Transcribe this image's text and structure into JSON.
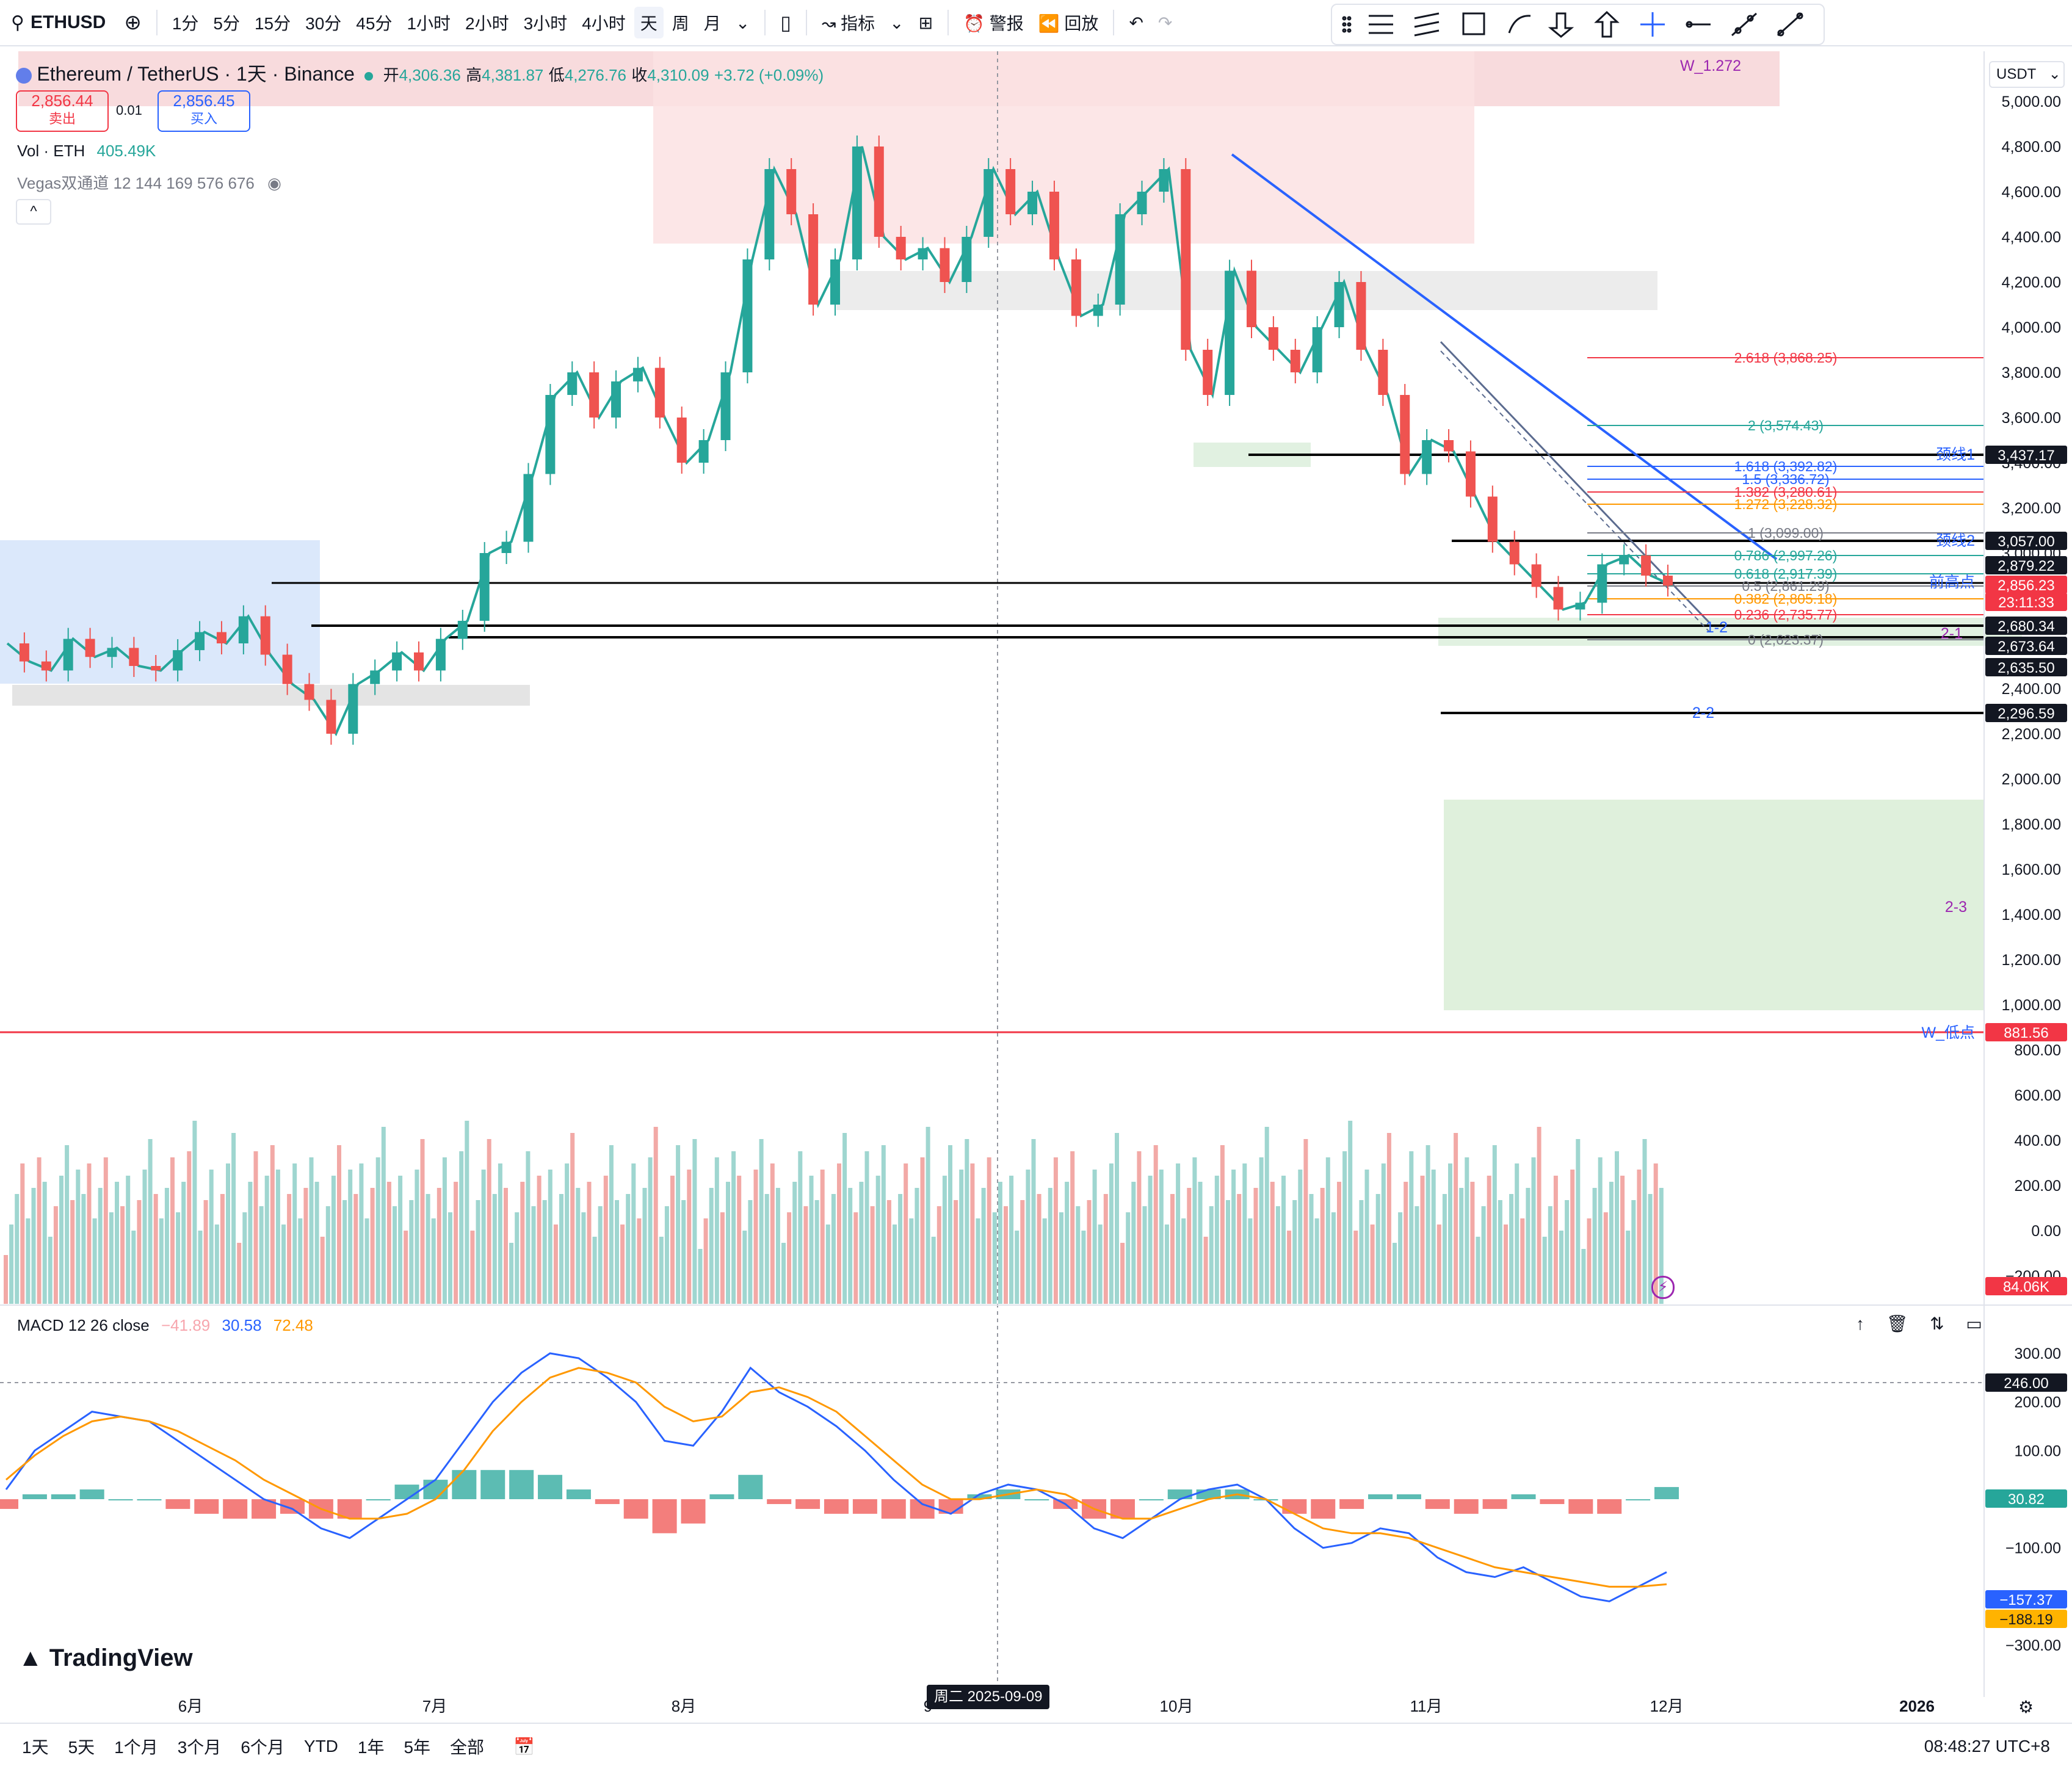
{
  "toolbar": {
    "symbol": "ETHUSD",
    "intervals": [
      "1分",
      "5分",
      "15分",
      "30分",
      "45分",
      "1小时",
      "2小时",
      "3小时",
      "4小时",
      "天",
      "周",
      "月"
    ],
    "active_interval": "天",
    "indicators_label": "指标",
    "alert_label": "警报",
    "replay_label": "回放"
  },
  "header": {
    "title": "Ethereum / TetherUS · 1天 · Binance",
    "open_label": "开",
    "open": "4,306.36",
    "high_label": "高",
    "high": "4,381.87",
    "low_label": "低",
    "low": "4,276.76",
    "close_label": "收",
    "close": "4,310.09",
    "change": "+3.72 (+0.09%)",
    "sell_price": "2,856.44",
    "sell_label": "卖出",
    "spread": "0.01",
    "buy_price": "2,856.45",
    "buy_label": "买入",
    "vol_label": "Vol · ETH",
    "vol_value": "405.49K",
    "vegas_label": "Vegas双通道 12 144 169 576 676",
    "currency": "USDT"
  },
  "macd_legend": {
    "label": "MACD 12 26 close",
    "hist": "−41.89",
    "macd": "30.58",
    "signal": "72.48"
  },
  "chart_data": {
    "type": "candlestick",
    "y_axis_ticks": [
      "5,000.00",
      "4,800.00",
      "4,600.00",
      "4,400.00",
      "4,200.00",
      "4,000.00",
      "3,800.00",
      "3,600.00",
      "3,400.00",
      "3,200.00",
      "3,000.00",
      "2,800.00",
      "2,600.00",
      "2,400.00",
      "2,200.00",
      "2,000.00",
      "1,800.00",
      "1,600.00",
      "1,400.00",
      "1,200.00",
      "1,000.00",
      "800.00",
      "600.00",
      "400.00",
      "200.00",
      "0.00",
      "−200.00"
    ],
    "y_axis_values": [
      5000,
      4800,
      4600,
      4400,
      4200,
      4000,
      3800,
      3600,
      3400,
      3200,
      3000,
      2800,
      2600,
      2400,
      2200,
      2000,
      1800,
      1600,
      1400,
      1200,
      1000,
      800,
      600,
      400,
      200,
      0,
      -200
    ],
    "x_axis_ticks": [
      "6月",
      "7月",
      "8月",
      "9",
      "10月",
      "11月",
      "12月",
      "2026"
    ],
    "crosshair_date": "周二 2025-09-09",
    "price_trend": [
      2600,
      2520,
      2480,
      2620,
      2540,
      2580,
      2500,
      2480,
      2570,
      2650,
      2600,
      2720,
      2550,
      2420,
      2350,
      2200,
      2420,
      2480,
      2560,
      2480,
      2620,
      2700,
      3000,
      3050,
      3350,
      3700,
      3800,
      3600,
      3760,
      3820,
      3600,
      3400,
      3500,
      3800,
      4300,
      4700,
      4500,
      4100,
      4300,
      4800,
      4400,
      4300,
      4350,
      4200,
      4400,
      4700,
      4500,
      4600,
      4300,
      4050,
      4100,
      4500,
      4600,
      4700,
      3900,
      3700,
      4250,
      4000,
      3900,
      3800,
      4000,
      4200,
      3900,
      3700,
      3350,
      3500,
      3450,
      3250,
      3050,
      2950,
      2850,
      2750,
      2780,
      2950,
      2990,
      2900,
      2856
    ],
    "volume_ticks": [],
    "macd_ticks": [
      "300.00",
      "200.00",
      "100.00",
      "0.00",
      "−100.00",
      "−200.00",
      "−300.00"
    ],
    "macd_tick_values": [
      300,
      200,
      100,
      0,
      -100,
      -200,
      -300
    ],
    "macd_line": [
      20,
      100,
      140,
      180,
      170,
      160,
      120,
      80,
      40,
      0,
      -20,
      -60,
      -80,
      -40,
      0,
      40,
      120,
      200,
      260,
      300,
      290,
      250,
      200,
      120,
      110,
      180,
      270,
      220,
      190,
      150,
      100,
      40,
      -10,
      -30,
      10,
      30,
      20,
      -10,
      -60,
      -80,
      -40,
      0,
      20,
      30,
      0,
      -60,
      -100,
      -90,
      -60,
      -70,
      -120,
      -150,
      -160,
      -140,
      -170,
      -200,
      -210,
      -180,
      -150
    ],
    "signal_line": [
      40,
      90,
      130,
      160,
      170,
      160,
      140,
      110,
      80,
      40,
      10,
      -20,
      -40,
      -40,
      -30,
      0,
      60,
      140,
      200,
      250,
      270,
      260,
      240,
      190,
      160,
      170,
      220,
      230,
      210,
      180,
      130,
      80,
      30,
      0,
      0,
      10,
      20,
      10,
      -20,
      -40,
      -40,
      -20,
      0,
      10,
      0,
      -30,
      -60,
      -70,
      -70,
      -80,
      -100,
      -120,
      -140,
      -150,
      -160,
      -170,
      -180,
      -180,
      -175
    ],
    "price_labels": [
      {
        "text": "3,437.17",
        "color": "#131722"
      },
      {
        "text": "3,057.00",
        "color": "#131722"
      },
      {
        "text": "2,879.22",
        "color": "#131722"
      },
      {
        "text": "2,856.23",
        "color": "#f23645"
      },
      {
        "text": "23:11:33",
        "color": "#f23645"
      },
      {
        "text": "2,680.34",
        "color": "#131722"
      },
      {
        "text": "2,673.64",
        "color": "#131722"
      },
      {
        "text": "2,635.50",
        "color": "#131722"
      },
      {
        "text": "2,296.59",
        "color": "#131722"
      },
      {
        "text": "881.56",
        "color": "#f23645"
      },
      {
        "text": "84.06K",
        "color": "#f23645"
      },
      {
        "text": "246.00",
        "color": "#131722"
      },
      {
        "text": "30.82",
        "color": "#26a69a"
      },
      {
        "text": "−157.37",
        "color": "#2962ff"
      },
      {
        "text": "−188.19",
        "color": "#ff9800"
      }
    ],
    "fib_levels": [
      {
        "text": "2.618 (3,868.25)",
        "color": "#f23645"
      },
      {
        "text": "2 (3,574.43)",
        "color": "#26a69a"
      },
      {
        "text": "1.618 (3,392.82)",
        "color": "#2962ff"
      },
      {
        "text": "1.5 (3,336.72)",
        "color": "#2962ff"
      },
      {
        "text": "1.382 (3,280.61)",
        "color": "#f23645"
      },
      {
        "text": "1.272 (3,228.32)",
        "color": "#ff9800"
      },
      {
        "text": "1 (3,099.00)",
        "color": "#787b86"
      },
      {
        "text": "0.786 (2,997.26)",
        "color": "#26a69a"
      },
      {
        "text": "0.618 (2,917.39)",
        "color": "#26a69a"
      },
      {
        "text": "0.5 (2,861.29)",
        "color": "#787b86"
      },
      {
        "text": "0.382 (2,805.18)",
        "color": "#ff9800"
      },
      {
        "text": "0.236 (2,735.77)",
        "color": "#f23645"
      },
      {
        "text": "0 (2,623.37)",
        "color": "#787b86"
      }
    ],
    "annotations": [
      "W_1.272",
      "颈线1",
      "颈线2",
      "前高点",
      "1-2",
      "2-1",
      "2-2",
      "2-3",
      "W_低点"
    ]
  },
  "bottom": {
    "ranges": [
      "1天",
      "5天",
      "1个月",
      "3个月",
      "6个月",
      "YTD",
      "1年",
      "5年",
      "全部"
    ],
    "clock": "08:48:27 UTC+8",
    "brand": "TradingView"
  },
  "colors": {
    "up": "#26a69a",
    "down": "#ef5350",
    "accent": "#2962ff"
  }
}
